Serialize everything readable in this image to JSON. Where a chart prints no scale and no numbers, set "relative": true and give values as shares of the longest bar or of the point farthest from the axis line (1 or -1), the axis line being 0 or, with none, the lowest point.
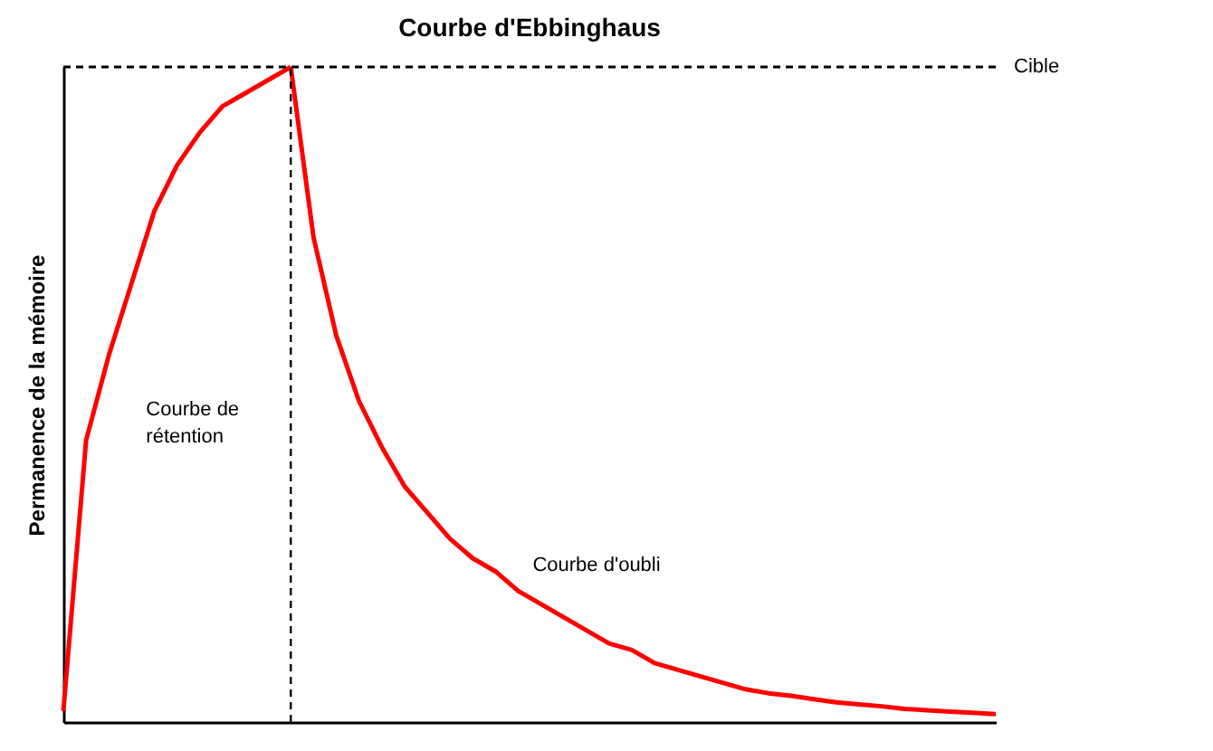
{
  "chart_data": {
    "type": "line",
    "title": "Courbe d'Ebbinghaus",
    "ylabel": "Permanence de la mémoire",
    "relative": true,
    "marker": "none",
    "line_style": "solid",
    "categories": [
      null,
      null,
      null,
      null,
      null,
      null,
      null,
      null,
      null,
      null,
      null,
      null,
      null,
      null,
      null,
      null,
      null,
      null,
      null,
      null,
      null,
      null,
      null,
      null,
      null,
      null,
      null,
      null,
      null,
      null,
      null,
      null,
      null,
      null,
      null,
      null,
      null,
      null,
      null,
      null,
      null,
      null
    ],
    "series": [
      {
        "name": "Courbe de rétention",
        "color": "#ff0000",
        "values": [
          0.017,
          0.43,
          0.56,
          0.67,
          0.78,
          0.85,
          0.9,
          0.94,
          0.96,
          0.98,
          1.0,
          null,
          null,
          null,
          null,
          null,
          null,
          null,
          null,
          null,
          null,
          null,
          null,
          null,
          null,
          null,
          null,
          null,
          null,
          null,
          null,
          null,
          null,
          null,
          null,
          null,
          null,
          null,
          null,
          null,
          null,
          null
        ]
      },
      {
        "name": "Courbe d'oubli",
        "color": "#ff0000",
        "values": [
          null,
          null,
          null,
          null,
          null,
          null,
          null,
          null,
          null,
          null,
          1.0,
          0.74,
          0.59,
          0.49,
          0.42,
          0.36,
          0.32,
          0.28,
          0.25,
          0.23,
          0.2,
          0.18,
          0.16,
          0.14,
          0.12,
          0.11,
          0.09,
          0.08,
          0.07,
          0.06,
          0.05,
          0.044,
          0.04,
          0.035,
          0.03,
          0.027,
          0.024,
          0.02,
          0.018,
          0.016,
          0.014,
          0.012
        ]
      }
    ],
    "ref_lines": [
      {
        "axis": "y",
        "value": 1,
        "label": "Cible",
        "color": "#000000",
        "line_style": "dashed"
      }
    ]
  }
}
